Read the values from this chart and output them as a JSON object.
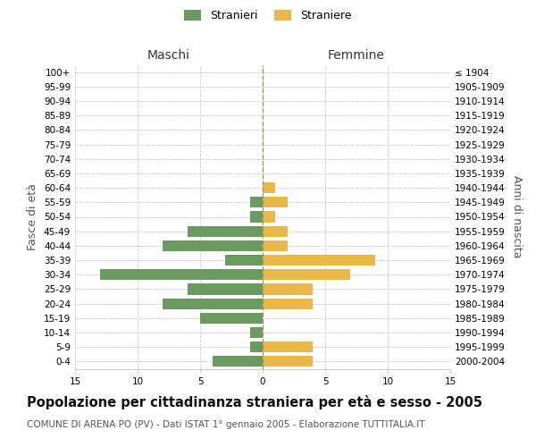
{
  "age_groups": [
    "0-4",
    "5-9",
    "10-14",
    "15-19",
    "20-24",
    "25-29",
    "30-34",
    "35-39",
    "40-44",
    "45-49",
    "50-54",
    "55-59",
    "60-64",
    "65-69",
    "70-74",
    "75-79",
    "80-84",
    "85-89",
    "90-94",
    "95-99",
    "100+"
  ],
  "birth_years": [
    "2000-2004",
    "1995-1999",
    "1990-1994",
    "1985-1989",
    "1980-1984",
    "1975-1979",
    "1970-1974",
    "1965-1969",
    "1960-1964",
    "1955-1959",
    "1950-1954",
    "1945-1949",
    "1940-1944",
    "1935-1939",
    "1930-1934",
    "1925-1929",
    "1920-1924",
    "1915-1919",
    "1910-1914",
    "1905-1909",
    "≤ 1904"
  ],
  "males": [
    4,
    1,
    1,
    5,
    8,
    6,
    13,
    3,
    8,
    6,
    1,
    1,
    0,
    0,
    0,
    0,
    0,
    0,
    0,
    0,
    0
  ],
  "females": [
    4,
    4,
    0,
    0,
    4,
    4,
    7,
    9,
    2,
    2,
    1,
    2,
    1,
    0,
    0,
    0,
    0,
    0,
    0,
    0,
    0
  ],
  "male_color": "#6a9a5f",
  "female_color": "#e8b84b",
  "xlim": 15,
  "title": "Popolazione per cittadinanza straniera per età e sesso - 2005",
  "subtitle": "COMUNE DI ARENA PO (PV) - Dati ISTAT 1° gennaio 2005 - Elaborazione TUTTITALIA.IT",
  "xlabel_left": "Maschi",
  "xlabel_right": "Femmine",
  "ylabel_left": "Fasce di età",
  "ylabel_right": "Anni di nascita",
  "legend_male": "Stranieri",
  "legend_female": "Straniere",
  "bg_color": "#ffffff",
  "grid_color": "#cccccc",
  "title_fontsize": 10.5,
  "subtitle_fontsize": 7.5,
  "tick_fontsize": 7.5,
  "label_fontsize": 9,
  "header_fontsize": 10
}
